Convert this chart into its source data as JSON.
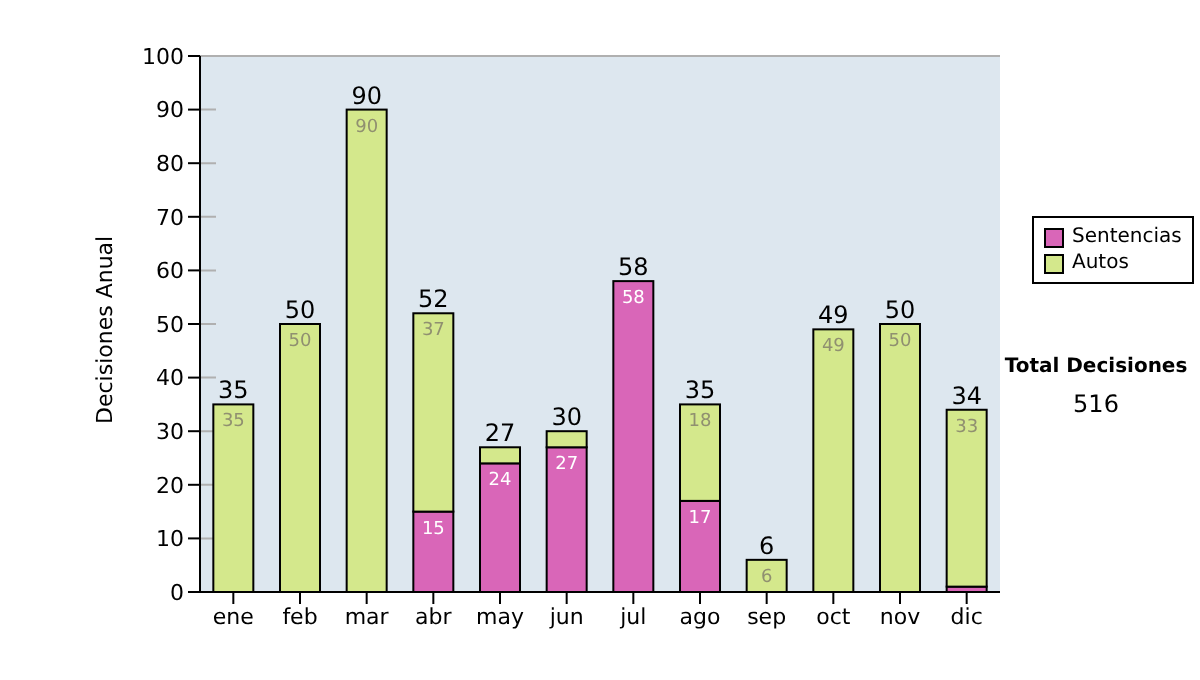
{
  "chart_data": {
    "type": "bar",
    "stacked": true,
    "categories": [
      "ene",
      "feb",
      "mar",
      "abr",
      "may",
      "jun",
      "jul",
      "ago",
      "sep",
      "oct",
      "nov",
      "dic"
    ],
    "ylabel": "Decisiones Anual",
    "ylim": [
      0,
      100
    ],
    "yticks": [
      0,
      10,
      20,
      30,
      40,
      50,
      60,
      70,
      80,
      90,
      100
    ],
    "grid": "y",
    "legend": "right",
    "series": [
      {
        "name": "Sentencias",
        "color": "#d966b8",
        "values": [
          0,
          0,
          0,
          15,
          24,
          27,
          58,
          17,
          0,
          0,
          0,
          1
        ],
        "value_labels": [
          null,
          null,
          null,
          "15",
          "24",
          "27",
          "58",
          "17",
          null,
          null,
          null,
          null
        ]
      },
      {
        "name": "Autos",
        "color": "#d4e88c",
        "values": [
          35,
          50,
          90,
          37,
          3,
          3,
          0,
          18,
          6,
          49,
          50,
          33
        ],
        "value_labels": [
          "35",
          "50",
          "90",
          "37",
          null,
          null,
          null,
          "18",
          "6",
          "49",
          "50",
          "33"
        ]
      }
    ],
    "totals": [
      "35",
      "50",
      "90",
      "52",
      "27",
      "30",
      "58",
      "35",
      "6",
      "49",
      "50",
      "34"
    ],
    "annotations": [
      "Total Decisiones",
      "516"
    ]
  }
}
